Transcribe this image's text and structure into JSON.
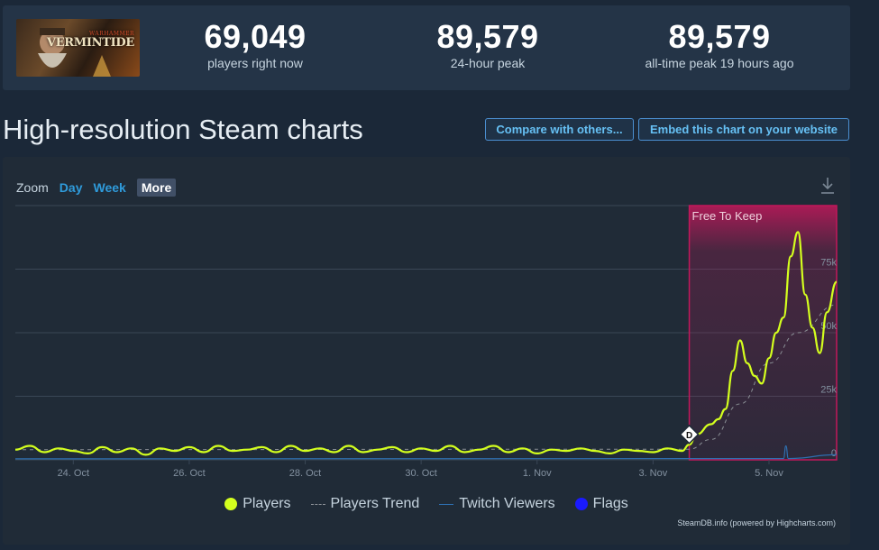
{
  "game": {
    "thumb_top": "WARHAMMER",
    "thumb_name": "VERMINTIDE"
  },
  "stats": [
    {
      "value": "69,049",
      "label": "players right now"
    },
    {
      "value": "89,579",
      "label": "24-hour peak"
    },
    {
      "value": "89,579",
      "label": "all-time peak 19 hours ago"
    }
  ],
  "title": "High-resolution Steam charts",
  "buttons": {
    "compare": "Compare with others...",
    "embed": "Embed this chart on your website"
  },
  "zoom": {
    "label": "Zoom",
    "options": [
      "Day",
      "Week",
      "More"
    ],
    "active": "More"
  },
  "icons": {
    "download": "download-icon",
    "flag_marker": "diamond-flag-icon"
  },
  "colors": {
    "players": "#d4ff1e",
    "trend": "#8a8f95",
    "twitch": "#2e6fb0",
    "flags": "#1a1aff",
    "band": "#c2185b"
  },
  "legend": {
    "players": "Players",
    "trend": "Players Trend",
    "twitch": "Twitch Viewers",
    "flags": "Flags"
  },
  "credit": "SteamDB.info (powered by Highcharts.com)",
  "chart_data": {
    "type": "line",
    "x_ticks": [
      "24. Oct",
      "26. Oct",
      "28. Oct",
      "30. Oct",
      "1. Nov",
      "3. Nov",
      "5. Nov"
    ],
    "y_ticks": [
      "0",
      "25k",
      "50k",
      "75k"
    ],
    "ylim": [
      0,
      100000
    ],
    "xlim": [
      "23 Oct 00:00",
      "6 Nov 04:00"
    ],
    "grid": true,
    "legend_position": "bottom",
    "band": {
      "label": "Free To Keep",
      "from": "3 Nov 15:00",
      "to": "6 Nov 04:00"
    },
    "flag": {
      "label": "D",
      "at": "3 Nov 15:00",
      "y": 10000
    },
    "series": [
      {
        "name": "Players",
        "x": [
          "23 Oct 00:00",
          "23 Oct 06:00",
          "23 Oct 12:00",
          "23 Oct 18:00",
          "24 Oct 00:00",
          "24 Oct 06:00",
          "24 Oct 12:00",
          "24 Oct 18:00",
          "25 Oct 00:00",
          "25 Oct 06:00",
          "25 Oct 12:00",
          "25 Oct 18:00",
          "26 Oct 00:00",
          "26 Oct 06:00",
          "26 Oct 12:00",
          "26 Oct 18:00",
          "27 Oct 00:00",
          "27 Oct 06:00",
          "27 Oct 12:00",
          "27 Oct 18:00",
          "28 Oct 00:00",
          "28 Oct 06:00",
          "28 Oct 12:00",
          "28 Oct 18:00",
          "29 Oct 00:00",
          "29 Oct 06:00",
          "29 Oct 12:00",
          "29 Oct 18:00",
          "30 Oct 00:00",
          "30 Oct 06:00",
          "30 Oct 12:00",
          "30 Oct 18:00",
          "31 Oct 00:00",
          "31 Oct 06:00",
          "31 Oct 12:00",
          "31 Oct 18:00",
          "1 Nov 00:00",
          "1 Nov 06:00",
          "1 Nov 12:00",
          "1 Nov 18:00",
          "2 Nov 00:00",
          "2 Nov 06:00",
          "2 Nov 12:00",
          "2 Nov 18:00",
          "3 Nov 00:00",
          "3 Nov 06:00",
          "3 Nov 12:00",
          "3 Nov 15:00",
          "3 Nov 18:00",
          "4 Nov 00:00",
          "4 Nov 03:00",
          "4 Nov 06:00",
          "4 Nov 09:00",
          "4 Nov 12:00",
          "4 Nov 15:00",
          "4 Nov 18:00",
          "4 Nov 21:00",
          "5 Nov 00:00",
          "5 Nov 03:00",
          "5 Nov 06:00",
          "5 Nov 09:00",
          "5 Nov 12:00",
          "5 Nov 15:00",
          "5 Nov 18:00",
          "5 Nov 21:00",
          "6 Nov 00:00",
          "6 Nov 04:00"
        ],
        "y": [
          4000,
          5500,
          3000,
          4500,
          3500,
          2500,
          5000,
          3000,
          4500,
          2000,
          4500,
          3500,
          5000,
          3000,
          5500,
          3500,
          4000,
          5000,
          3000,
          5500,
          3500,
          4500,
          3000,
          5500,
          3000,
          4000,
          5000,
          3000,
          4500,
          3500,
          5500,
          3000,
          4000,
          5500,
          3000,
          4500,
          2500,
          4000,
          3500,
          4500,
          3500,
          2500,
          4000,
          3500,
          3000,
          4500,
          3500,
          6000,
          10000,
          14000,
          16000,
          20000,
          35000,
          47000,
          38000,
          33000,
          30000,
          40000,
          50000,
          56000,
          80000,
          89579,
          65000,
          52000,
          42000,
          58000,
          70000
        ]
      },
      {
        "name": "Players Trend",
        "x": [
          "23 Oct 00:00",
          "3 Nov 15:00",
          "4 Nov 00:00",
          "4 Nov 12:00",
          "5 Nov 00:00",
          "5 Nov 12:00",
          "6 Nov 04:00"
        ],
        "y": [
          4000,
          4200,
          8000,
          22000,
          38000,
          50000,
          61000
        ]
      },
      {
        "name": "Twitch Viewers",
        "x": [
          "23 Oct 00:00",
          "5 Nov 06:00",
          "5 Nov 07:00",
          "5 Nov 08:00",
          "6 Nov 04:00"
        ],
        "y": [
          400,
          500,
          5500,
          500,
          2000
        ]
      }
    ]
  }
}
